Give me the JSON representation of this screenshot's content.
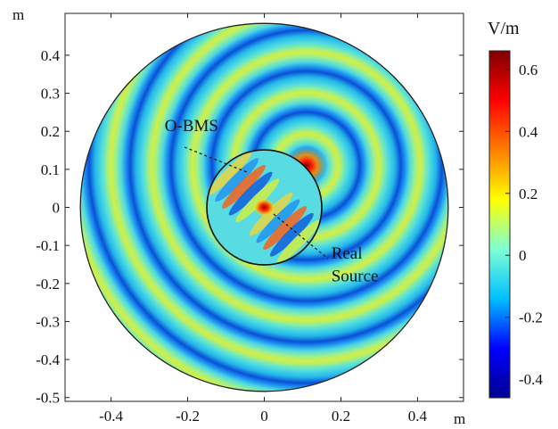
{
  "chart_data": {
    "type": "heatmap",
    "title": "",
    "xlabel": "m",
    "ylabel": "m",
    "x_ticks": [
      "-0.4",
      "-0.2",
      "0",
      "0.2",
      "0.4"
    ],
    "x_tick_values": [
      -0.4,
      -0.2,
      0,
      0.2,
      0.4
    ],
    "y_ticks": [
      "0.4",
      "0.3",
      "0.2",
      "0.1",
      "0",
      "-0.1",
      "-0.2",
      "-0.3",
      "-0.4",
      "-0.5"
    ],
    "y_tick_values": [
      0.4,
      0.3,
      0.2,
      0.1,
      0,
      -0.1,
      -0.2,
      -0.3,
      -0.4,
      -0.5
    ],
    "xlim": [
      -0.52,
      0.52
    ],
    "ylim": [
      -0.51,
      0.51
    ],
    "domain": {
      "center": [
        0,
        0
      ],
      "radius": 0.48
    },
    "inner_circle": {
      "center": [
        0,
        0
      ],
      "radius": 0.15
    },
    "hotspots": [
      {
        "x": 0.11,
        "y": 0.11,
        "value": 0.62
      },
      {
        "x": 0.0,
        "y": 0.0,
        "value": 0.6
      }
    ],
    "colorbar": {
      "title": "V/m",
      "ticks": [
        "0.6",
        "0.4",
        "0.2",
        "0",
        "-0.2",
        "-0.4"
      ],
      "tick_values": [
        0.6,
        0.4,
        0.2,
        0,
        -0.2,
        -0.4
      ],
      "range": [
        -0.46,
        0.66
      ],
      "colormap": [
        "#00008f",
        "#0000ff",
        "#00bfff",
        "#7fffd4",
        "#ffff00",
        "#ff7f00",
        "#ff0000",
        "#7f0000"
      ]
    },
    "annotations": [
      {
        "text": "O-BMS",
        "x": -0.26,
        "y": 0.2
      },
      {
        "text": "Real",
        "x": 0.175,
        "y": -0.135
      },
      {
        "text": "Source",
        "x": 0.175,
        "y": -0.195
      }
    ]
  }
}
